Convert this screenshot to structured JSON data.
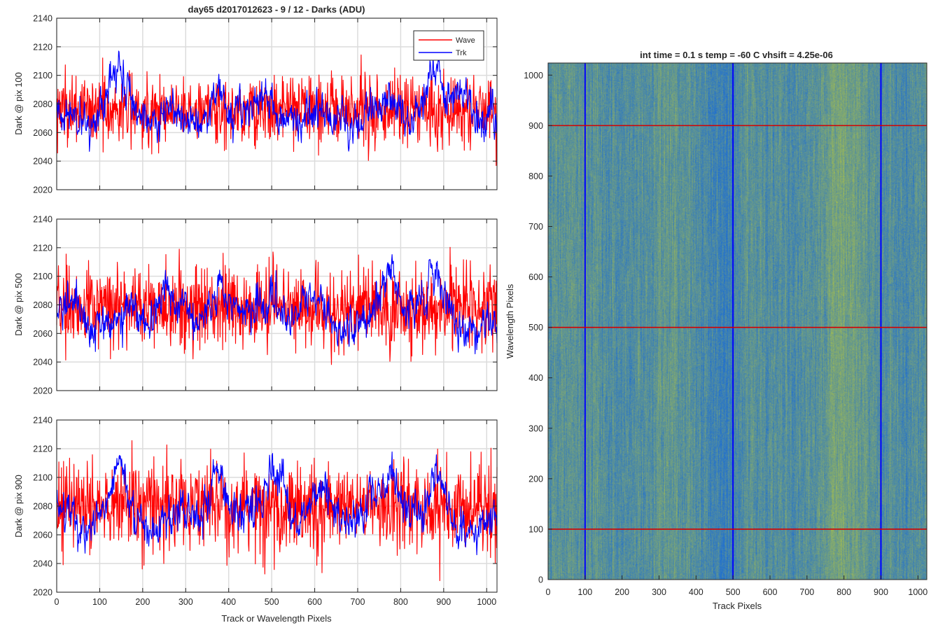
{
  "figure_title": "day65 d2017012623 - 9 / 12 - Darks (ADU)",
  "legend": {
    "entries": [
      "Wave",
      "Trk"
    ],
    "placement": "top-right of first panel"
  },
  "colors": {
    "wave": "#ff0000",
    "trk": "#0000ff",
    "axis": "#262626",
    "grid": "#dcdcdc",
    "image_low": "#1f6fd1",
    "image_high": "#b7c83c",
    "overlay": "#d40000"
  },
  "chart_data": [
    {
      "type": "line",
      "title": "day65 d2017012623 - 9 / 12 - Darks (ADU)",
      "xlabel": "",
      "ylabel": "Dark @ pix 100",
      "xlim": [
        0,
        1024
      ],
      "ylim": [
        2020,
        2140
      ],
      "xticks": [
        0,
        100,
        200,
        300,
        400,
        500,
        600,
        700,
        800,
        900,
        1000
      ],
      "xtick_labels_shown": false,
      "yticks": [
        2020,
        2040,
        2060,
        2080,
        2100,
        2120,
        2140
      ],
      "grid": true,
      "series": [
        {
          "name": "Wave",
          "color": "#ff0000",
          "mean": 2076,
          "noise": 12,
          "bumps": []
        },
        {
          "name": "Trk",
          "color": "#0000ff",
          "mean": 2068,
          "noise": 7,
          "bumps": [
            [
              140,
              30,
              25
            ],
            [
              250,
              15,
              20
            ],
            [
              375,
              30,
              15
            ],
            [
              495,
              12,
              20
            ],
            [
              650,
              12,
              25
            ],
            [
              780,
              15,
              20
            ],
            [
              880,
              25,
              25
            ],
            [
              950,
              20,
              20
            ]
          ]
        }
      ]
    },
    {
      "type": "line",
      "title": "",
      "xlabel": "",
      "ylabel": "Dark @ pix 500",
      "xlim": [
        0,
        1024
      ],
      "ylim": [
        2020,
        2140
      ],
      "xticks": [
        0,
        100,
        200,
        300,
        400,
        500,
        600,
        700,
        800,
        900,
        1000
      ],
      "xtick_labels_shown": false,
      "yticks": [
        2020,
        2040,
        2060,
        2080,
        2100,
        2120,
        2140
      ],
      "grid": true,
      "series": [
        {
          "name": "Wave",
          "color": "#ff0000",
          "mean": 2078,
          "noise": 14,
          "bumps": []
        },
        {
          "name": "Trk",
          "color": "#0000ff",
          "mean": 2070,
          "noise": 7,
          "bumps": [
            [
              250,
              25,
              25
            ],
            [
              380,
              30,
              15
            ],
            [
              510,
              15,
              20
            ],
            [
              590,
              15,
              30
            ],
            [
              780,
              30,
              20
            ],
            [
              880,
              20,
              25
            ]
          ]
        }
      ]
    },
    {
      "type": "line",
      "title": "",
      "xlabel": "Track or Wavelength Pixels",
      "ylabel": "Dark @ pix 900",
      "xlim": [
        0,
        1024
      ],
      "ylim": [
        2020,
        2140
      ],
      "xticks": [
        0,
        100,
        200,
        300,
        400,
        500,
        600,
        700,
        800,
        900,
        1000
      ],
      "xtick_labels_shown": true,
      "yticks": [
        2020,
        2040,
        2060,
        2080,
        2100,
        2120,
        2140
      ],
      "grid": true,
      "series": [
        {
          "name": "Wave",
          "color": "#ff0000",
          "mean": 2080,
          "noise": 15,
          "bumps": []
        },
        {
          "name": "Trk",
          "color": "#0000ff",
          "mean": 2070,
          "noise": 7,
          "bumps": [
            [
              140,
              40,
              20
            ],
            [
              375,
              40,
              15
            ],
            [
              510,
              45,
              20
            ],
            [
              620,
              20,
              25
            ],
            [
              780,
              25,
              25
            ],
            [
              890,
              30,
              20
            ]
          ]
        }
      ]
    },
    {
      "type": "heatmap",
      "title": "int time = 0.1 s   temp = -60 C   vhsift = 4.25e-06",
      "xlabel": "Track Pixels",
      "ylabel": "Wavelength Pixels",
      "xlim": [
        0,
        1024
      ],
      "ylim": [
        0,
        1024
      ],
      "xticks": [
        0,
        100,
        200,
        300,
        400,
        500,
        600,
        700,
        800,
        900,
        1000
      ],
      "yticks": [
        0,
        100,
        200,
        300,
        400,
        500,
        600,
        700,
        800,
        900,
        1000
      ],
      "vertical_lines_blue": [
        100,
        500,
        900
      ],
      "horizontal_lines_red": [
        100,
        500,
        900
      ],
      "colormap_low": "#1f6fd1",
      "colormap_high": "#b7c83c"
    }
  ]
}
